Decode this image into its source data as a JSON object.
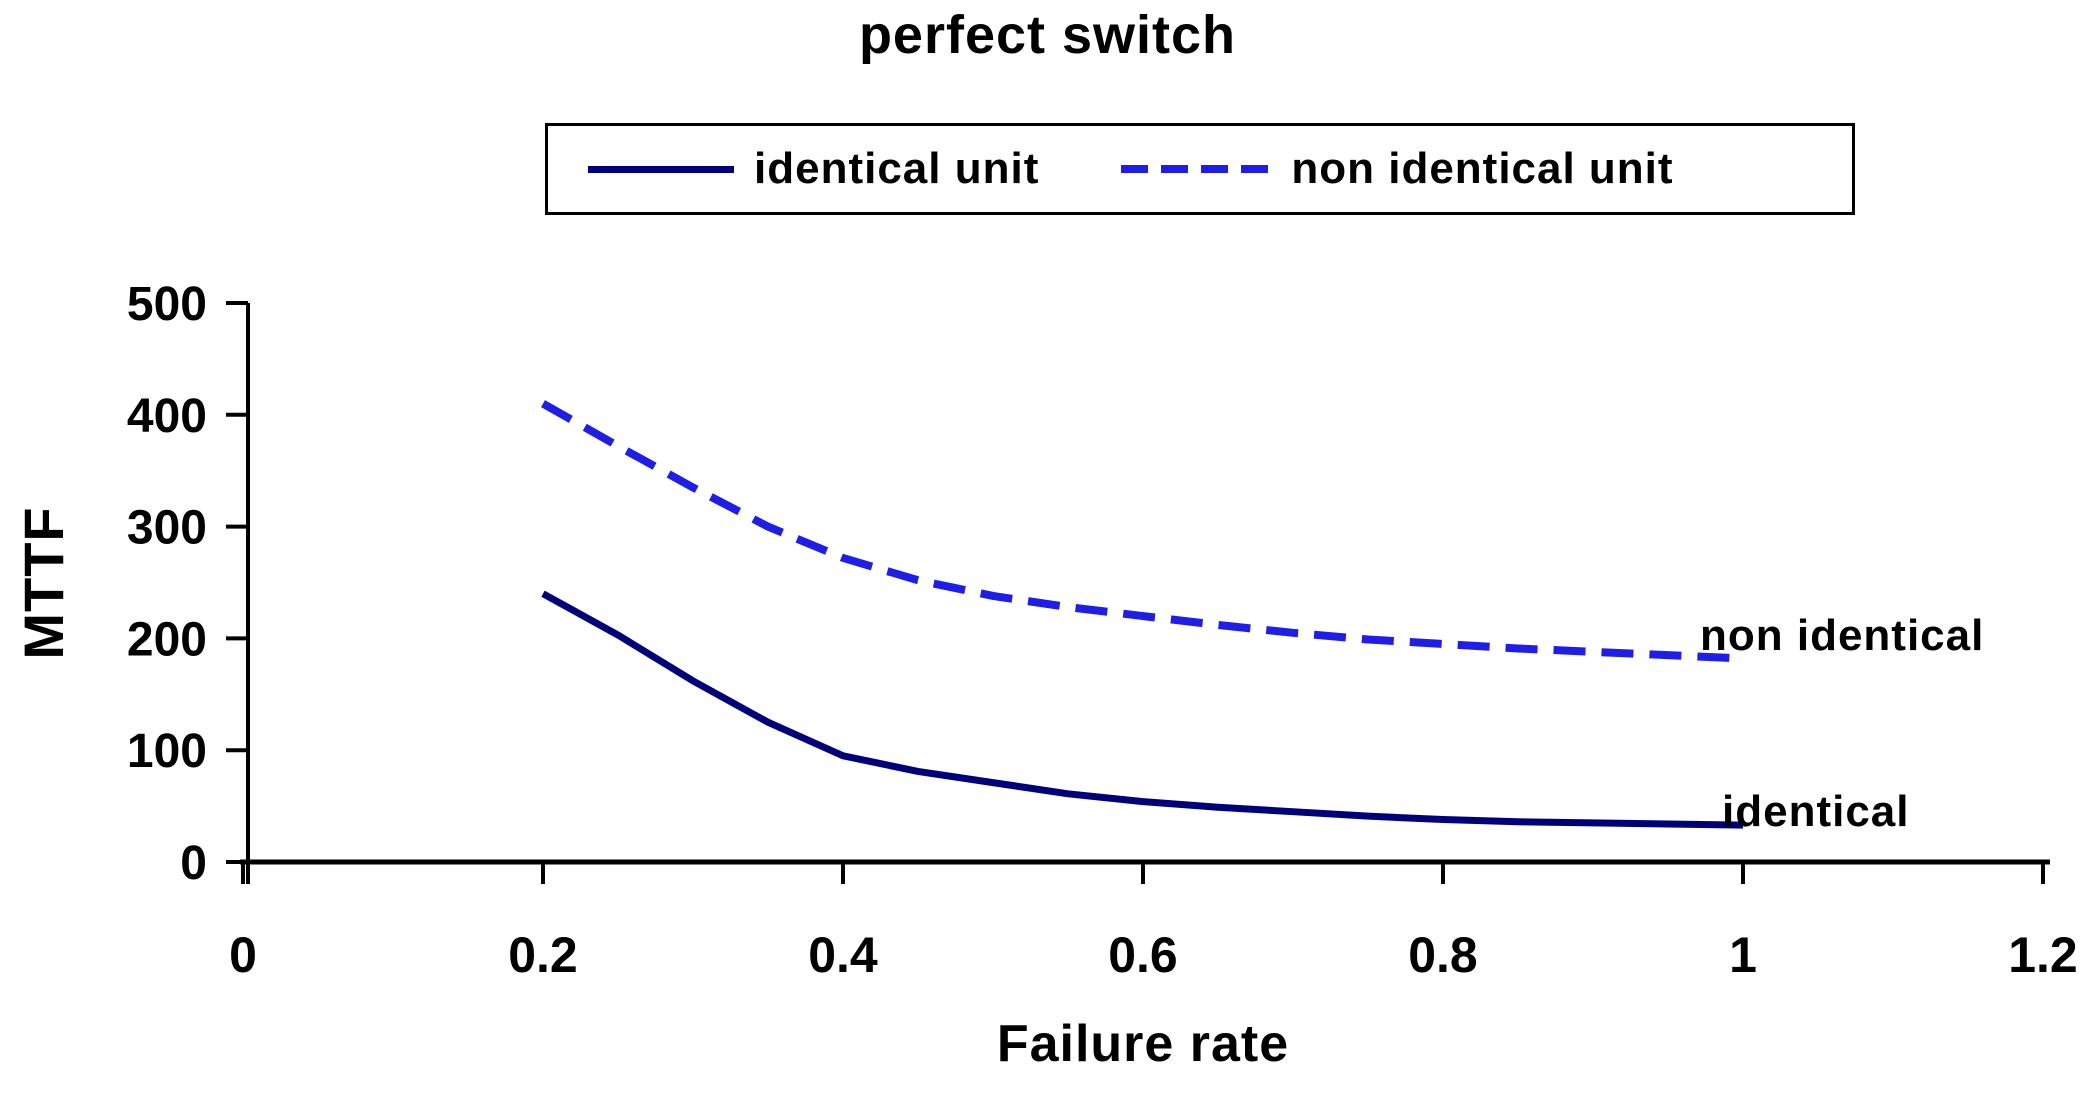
{
  "chart_data": {
    "type": "line",
    "title": "perfect switch",
    "xlabel": "Failure rate",
    "ylabel": "MTTF",
    "xlim": [
      0,
      1.2
    ],
    "ylim": [
      0,
      500
    ],
    "grid": false,
    "legend_position": "top-center",
    "x_ticks": [
      0,
      0.2,
      0.4,
      0.6,
      0.8,
      1,
      1.2
    ],
    "x_tick_labels": [
      "0",
      "0.2",
      "0.4",
      "0.6",
      "0.8",
      "1",
      "1.2"
    ],
    "y_ticks": [
      0,
      100,
      200,
      300,
      400,
      500
    ],
    "y_tick_labels": [
      "0",
      "100",
      "200",
      "300",
      "400",
      "500"
    ],
    "x": [
      0.2,
      0.25,
      0.3,
      0.35,
      0.4,
      0.45,
      0.5,
      0.55,
      0.6,
      0.65,
      0.7,
      0.75,
      0.8,
      0.85,
      0.9,
      0.95,
      1.0
    ],
    "series": [
      {
        "name": "non identical unit",
        "annotation": "non identical",
        "style": "dashed",
        "color": "#1e1ee6",
        "values": [
          410,
          372,
          335,
          300,
          272,
          252,
          238,
          228,
          220,
          212,
          205,
          199,
          195,
          191,
          188,
          185,
          182
        ]
      },
      {
        "name": "identical unit",
        "annotation": "identical",
        "style": "solid",
        "color": "#00007b",
        "values": [
          240,
          203,
          162,
          125,
          95,
          81,
          71,
          61,
          54,
          49,
          45,
          41,
          38,
          36,
          35,
          34,
          33
        ]
      }
    ],
    "axis_color": "#000000"
  }
}
